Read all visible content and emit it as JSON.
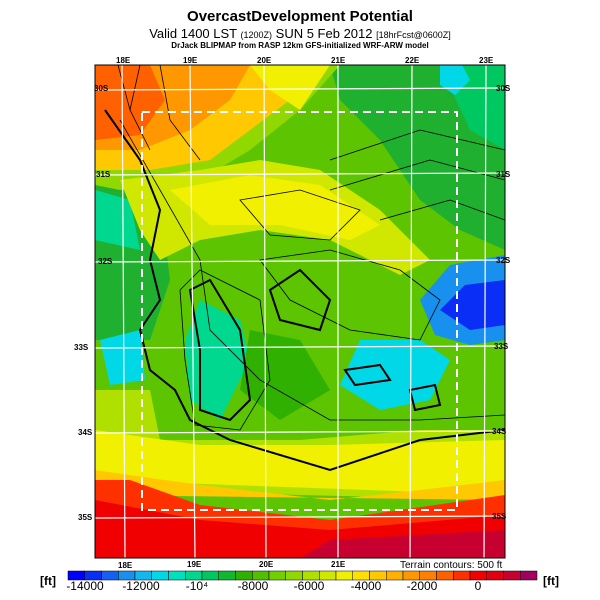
{
  "title": "OvercastDevelopment Potential",
  "subtitle_main": "Valid 1400 LST",
  "subtitle_z": "(1200Z)",
  "subtitle_date": "SUN 5 Feb 2012",
  "subtitle_fcst": "[18hrFcst@0600Z]",
  "credit": "DrJack BLIPMAP from RASP 12km GFS-initialized WRF-ARW model",
  "lon_top": [
    "18E",
    "19E",
    "20E",
    "21E",
    "22E",
    "23E"
  ],
  "lon_bottom": [
    "18E",
    "19E",
    "20E",
    "21E"
  ],
  "lat_left": [
    "30S",
    "31S",
    "32S",
    "33S",
    "34S",
    "35S"
  ],
  "lat_right": [
    "30S",
    "31S",
    "32S",
    "33S",
    "34S",
    "35S"
  ],
  "terrain_note": "Terrain contours: 500 ft",
  "colorbar": {
    "unit_left": "[ft]",
    "unit_right": "[ft]",
    "ticks": [
      "-14000",
      "-12000",
      "-10⁴",
      "-8000",
      "-6000",
      "-4000",
      "-2000",
      "0"
    ],
    "colors": [
      "#0000ff",
      "#0a2ef5",
      "#1460f0",
      "#1890ee",
      "#10b8ee",
      "#00d8e8",
      "#00e0c0",
      "#00d890",
      "#00c860",
      "#10b830",
      "#30b000",
      "#50c000",
      "#70d000",
      "#90d800",
      "#b0e000",
      "#d0e800",
      "#f0f000",
      "#ffe000",
      "#ffc800",
      "#ffb000",
      "#ff9800",
      "#ff8000",
      "#ff6000",
      "#ff3000",
      "#f00000",
      "#e00010",
      "#c80030",
      "#a00060"
    ]
  }
}
